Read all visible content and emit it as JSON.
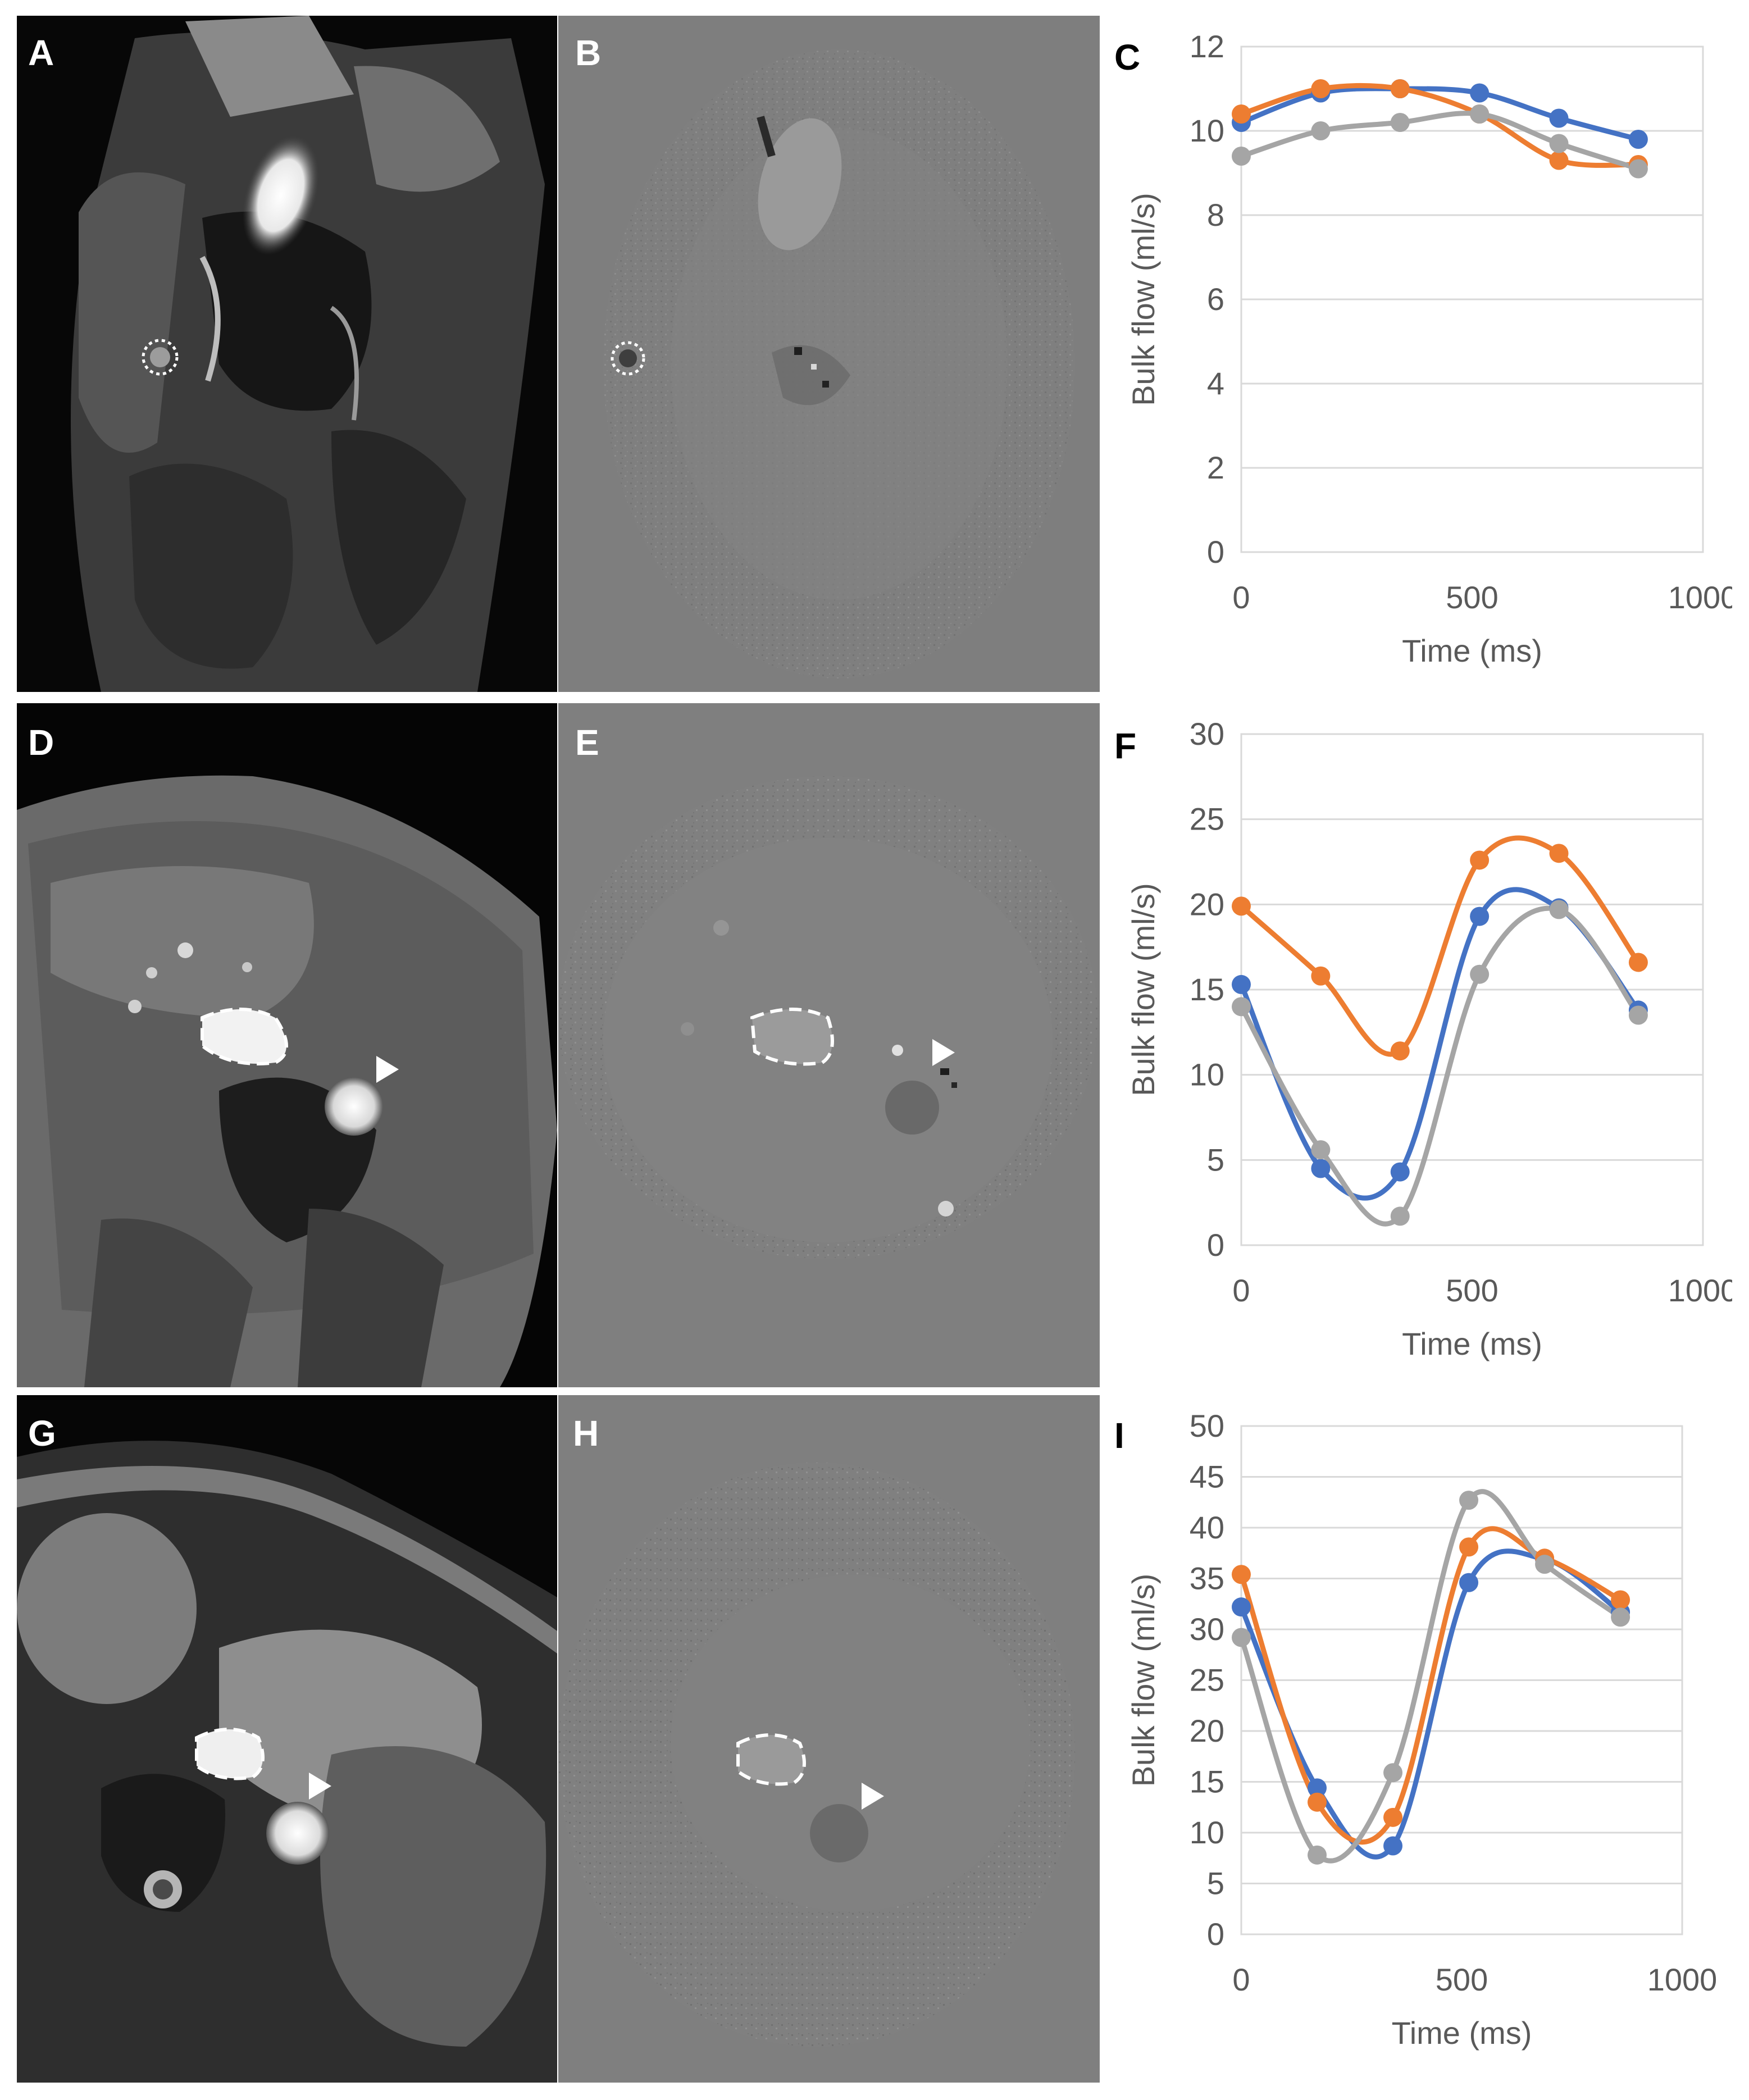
{
  "panels": {
    "a": "A",
    "b": "B",
    "c": "C",
    "d": "D",
    "e": "E",
    "f": "F",
    "g": "G",
    "h": "H",
    "i": "I"
  },
  "colors": {
    "series_blue": "#4472c4",
    "series_orange": "#ed7d31",
    "series_gray": "#a5a5a5",
    "gridline": "#d9d9d9",
    "axis_text": "#595959"
  },
  "chart_data": [
    {
      "panel": "C",
      "type": "line",
      "xlabel": "Time (ms)",
      "ylabel": "Bulk flow (ml/s)",
      "xlim": [
        0,
        1000
      ],
      "ylim": [
        0,
        12
      ],
      "xticks": [
        0,
        500,
        1000
      ],
      "yticks": [
        0,
        2,
        4,
        6,
        8,
        10,
        12
      ],
      "grid": "horizontal",
      "x": [
        0,
        172,
        344,
        516,
        688,
        860
      ],
      "series": [
        {
          "color": "#4472c4",
          "values": [
            10.2,
            10.9,
            11.0,
            10.9,
            10.3,
            9.8
          ]
        },
        {
          "color": "#ed7d31",
          "values": [
            10.4,
            11.0,
            11.0,
            10.4,
            9.3,
            9.2
          ]
        },
        {
          "color": "#a5a5a5",
          "values": [
            9.4,
            10.0,
            10.2,
            10.4,
            9.7,
            9.1
          ]
        }
      ]
    },
    {
      "panel": "F",
      "type": "line",
      "xlabel": "Time (ms)",
      "ylabel": "Bulk flow (ml/s)",
      "xlim": [
        0,
        1000
      ],
      "ylim": [
        0,
        30
      ],
      "xticks": [
        0,
        500,
        1000
      ],
      "yticks": [
        0,
        5,
        10,
        15,
        20,
        25,
        30
      ],
      "grid": "horizontal",
      "x": [
        0,
        172,
        344,
        516,
        688,
        860
      ],
      "series": [
        {
          "color": "#4472c4",
          "values": [
            15.3,
            4.5,
            4.3,
            19.3,
            19.8,
            13.8
          ]
        },
        {
          "color": "#ed7d31",
          "values": [
            19.9,
            15.8,
            11.4,
            22.6,
            23.0,
            16.6
          ]
        },
        {
          "color": "#a5a5a5",
          "values": [
            14.0,
            5.6,
            1.7,
            15.9,
            19.7,
            13.5
          ]
        }
      ]
    },
    {
      "panel": "I",
      "type": "line",
      "xlabel": "Time (ms)",
      "ylabel": "Bulk flow (ml/s)",
      "xlim": [
        0,
        1000
      ],
      "ylim": [
        0,
        50
      ],
      "xticks": [
        0,
        500,
        1000
      ],
      "yticks": [
        0,
        5,
        10,
        15,
        20,
        25,
        30,
        35,
        40,
        45,
        50
      ],
      "grid": "horizontal",
      "x": [
        0,
        172,
        344,
        516,
        688,
        860
      ],
      "series": [
        {
          "color": "#4472c4",
          "values": [
            32.2,
            14.4,
            8.7,
            34.6,
            36.9,
            31.7
          ]
        },
        {
          "color": "#ed7d31",
          "values": [
            35.4,
            13.0,
            11.5,
            38.1,
            37.0,
            32.9
          ]
        },
        {
          "color": "#a5a5a5",
          "values": [
            29.2,
            7.8,
            15.9,
            42.7,
            36.4,
            31.2
          ]
        }
      ]
    }
  ]
}
